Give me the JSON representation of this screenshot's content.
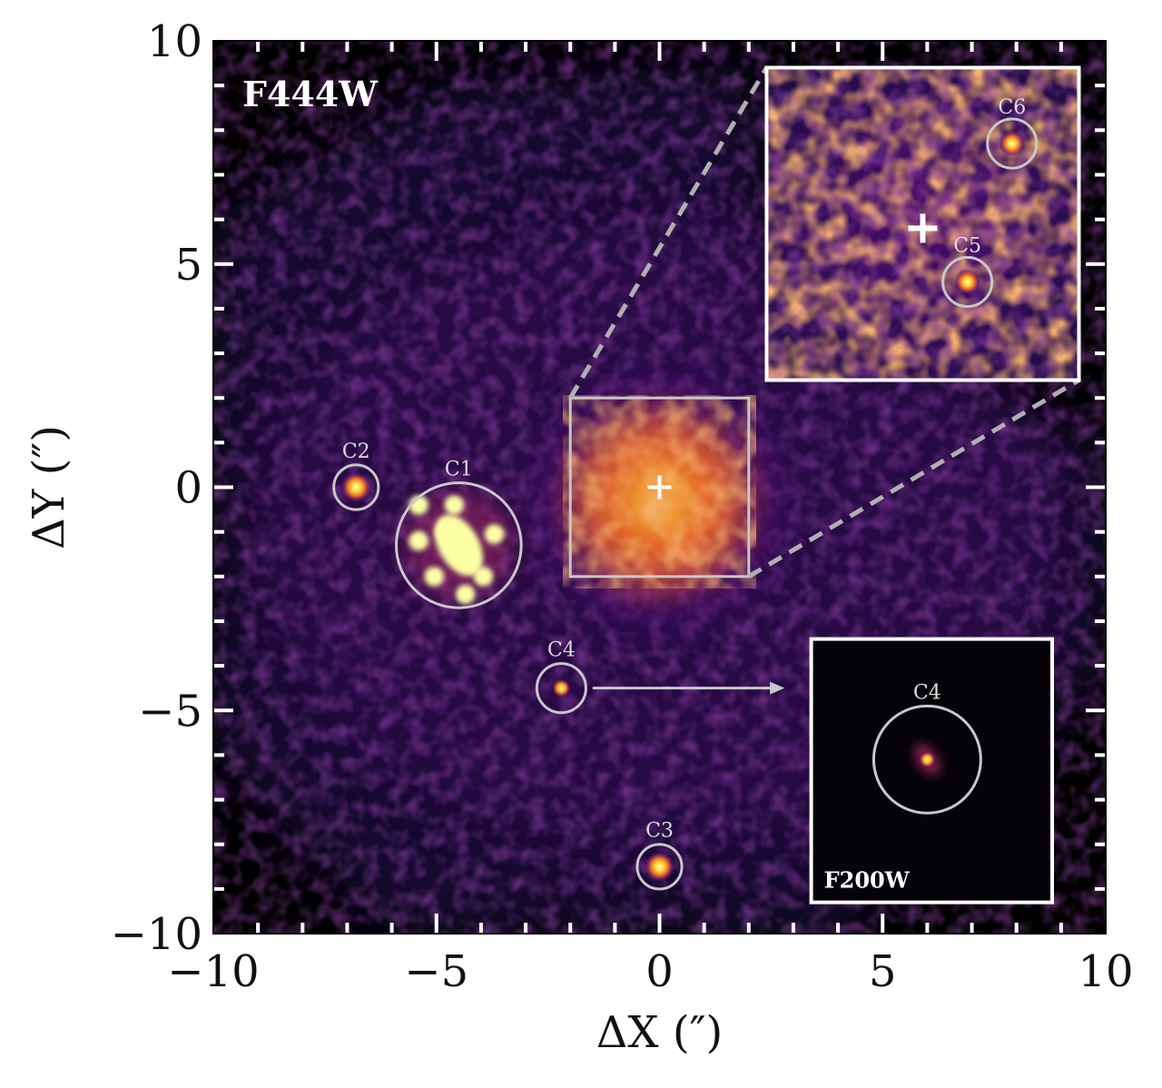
{
  "chart_data": {
    "type": "heatmap",
    "title": "",
    "band_label": "F444W",
    "xlabel": "ΔX (″)",
    "ylabel": "ΔY (″)",
    "xlim": [
      -10,
      10
    ],
    "ylim": [
      -10,
      10
    ],
    "x_ticks": [
      -10,
      -5,
      0,
      5,
      10
    ],
    "y_ticks": [
      -10,
      -5,
      0,
      5,
      10
    ],
    "x_tick_labels": [
      "−10",
      "−5",
      "0",
      "5",
      "10"
    ],
    "y_tick_labels": [
      "−10",
      "−5",
      "0",
      "5",
      "10"
    ],
    "grid": false,
    "colormap": "inferno",
    "center_marker": {
      "x": 0,
      "y": 0
    },
    "sources": [
      {
        "id": "C1",
        "x": -4.5,
        "y": -1.3,
        "radius": 1.4
      },
      {
        "id": "C2",
        "x": -6.8,
        "y": 0.0,
        "radius": 0.5
      },
      {
        "id": "C3",
        "x": 0.0,
        "y": -8.5,
        "radius": 0.5
      },
      {
        "id": "C4",
        "x": -2.2,
        "y": -4.5,
        "radius": 0.55
      }
    ],
    "zoom_box": {
      "x": [
        -2,
        2
      ],
      "y": [
        -2,
        2
      ]
    },
    "inset_zoom": {
      "x": [
        2.4,
        9.4
      ],
      "y": [
        2.4,
        9.4
      ],
      "sources": [
        {
          "id": "C5",
          "x": 6.9,
          "y": 4.6,
          "radius": 0.55
        },
        {
          "id": "C6",
          "x": 7.9,
          "y": 7.7,
          "radius": 0.55
        }
      ],
      "center_marker": {
        "x": 5.9,
        "y": 5.8
      }
    },
    "inset_c4": {
      "x": [
        3.4,
        8.8
      ],
      "y": [
        -9.3,
        -3.4
      ],
      "band_label": "F200W",
      "source": {
        "id": "C4",
        "x": 6.0,
        "y": -6.1,
        "radius": 1.2
      }
    },
    "arrow": {
      "from": [
        -1.5,
        -4.5
      ],
      "to": [
        2.8,
        -4.5
      ]
    }
  },
  "colors": {
    "background": "#000000",
    "annotation": "#c8c8c8",
    "inset_border": "#ffffff",
    "cmap": [
      "#000004",
      "#1b0c41",
      "#4a0c6b",
      "#781c6d",
      "#a52c60",
      "#cf4446",
      "#ed6925",
      "#fb9b06",
      "#f7d13d",
      "#fcffa4"
    ]
  }
}
